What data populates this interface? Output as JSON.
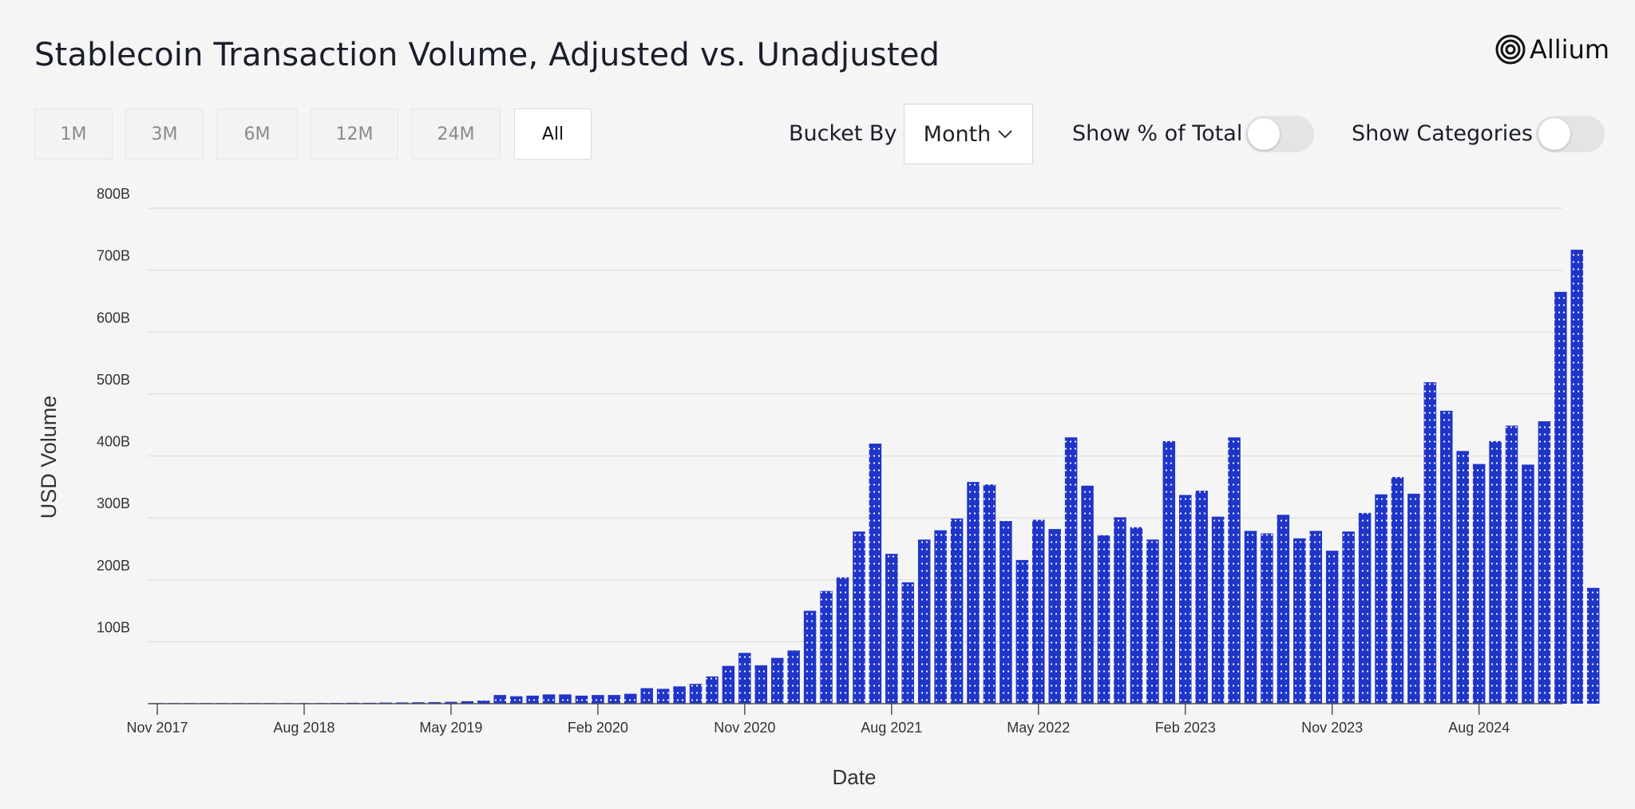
{
  "title": "Stablecoin Transaction Volume, Adjusted vs. Unadjusted",
  "brand": {
    "name": "Allium",
    "logo_icon": "concentric-circles-icon"
  },
  "range_buttons": [
    {
      "label": "1M",
      "active": false
    },
    {
      "label": "3M",
      "active": false
    },
    {
      "label": "6M",
      "active": false
    },
    {
      "label": "12M",
      "active": false
    },
    {
      "label": "24M",
      "active": false
    },
    {
      "label": "All",
      "active": true
    }
  ],
  "controls": {
    "bucket_label": "Bucket By",
    "bucket_value": "Month",
    "percent_label": "Show % of Total",
    "percent_on": false,
    "categories_label": "Show Categories",
    "categories_on": false
  },
  "colors": {
    "bar": "#2035c8",
    "bar_dot": "#ffffff",
    "grid": "#e2e2e2",
    "axis": "#555555"
  },
  "chart_data": {
    "type": "bar",
    "x_start": "2017-11",
    "ylabel": "USD Volume",
    "xlabel": "Date",
    "ylim": [
      0,
      800
    ],
    "y_unit": "B",
    "y_ticks": [
      "100B",
      "200B",
      "300B",
      "400B",
      "500B",
      "600B",
      "700B",
      "800B"
    ],
    "x_ticks": [
      {
        "label": "Nov 2017",
        "month_index": 0
      },
      {
        "label": "Aug 2018",
        "month_index": 9
      },
      {
        "label": "May 2019",
        "month_index": 18
      },
      {
        "label": "Feb 2020",
        "month_index": 27
      },
      {
        "label": "Nov 2020",
        "month_index": 36
      },
      {
        "label": "Aug 2021",
        "month_index": 45
      },
      {
        "label": "May 2022",
        "month_index": 54
      },
      {
        "label": "Feb 2023",
        "month_index": 63
      },
      {
        "label": "Nov 2023",
        "month_index": 72
      },
      {
        "label": "Aug 2024",
        "month_index": 81
      }
    ],
    "values": [
      0.3,
      0.3,
      0.3,
      0.4,
      0.4,
      0.5,
      0.5,
      0.6,
      0.7,
      0.8,
      1,
      1.2,
      1.5,
      1.5,
      1.8,
      2,
      2.3,
      2.5,
      3,
      4,
      5,
      14,
      12,
      13,
      15,
      15,
      13,
      14,
      14,
      16,
      25,
      24,
      28,
      32,
      44,
      61,
      82,
      62,
      74,
      86,
      150,
      182,
      204,
      278,
      420,
      242,
      196,
      265,
      280,
      299,
      358,
      354,
      295,
      232,
      297,
      282,
      430,
      352,
      272,
      301,
      285,
      265,
      424,
      337,
      344,
      302,
      430,
      279,
      275,
      305,
      267,
      279,
      247,
      278,
      308,
      338,
      366,
      339,
      519,
      473,
      408,
      387,
      424,
      449,
      386,
      456,
      665,
      733,
      187
    ]
  }
}
